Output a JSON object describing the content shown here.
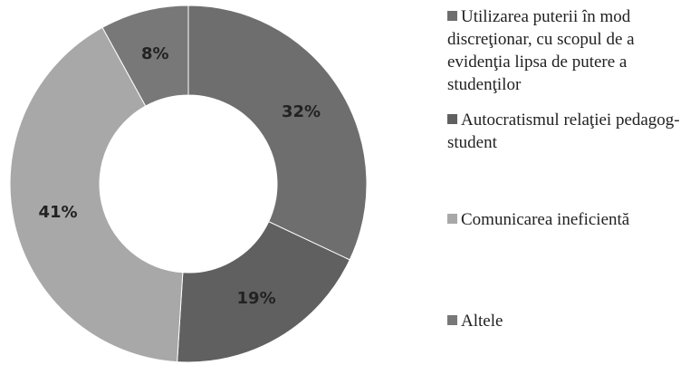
{
  "chart_data": {
    "type": "pie",
    "categories": [
      "Utilizarea puterii în mod discreţionar, cu scopul de a evidenţia lipsa de putere a studenţilor",
      "Autocratismul relaţiei pedagog-student",
      "Comunicarea ineficientă",
      "Altele"
    ],
    "values": [
      32,
      19,
      41,
      8
    ],
    "value_labels": [
      "32%",
      "19%",
      "41%",
      "8%"
    ],
    "colors": [
      "#6e6e6e",
      "#606060",
      "#a8a8a8",
      "#787878"
    ],
    "donut": true,
    "legend": "right"
  }
}
